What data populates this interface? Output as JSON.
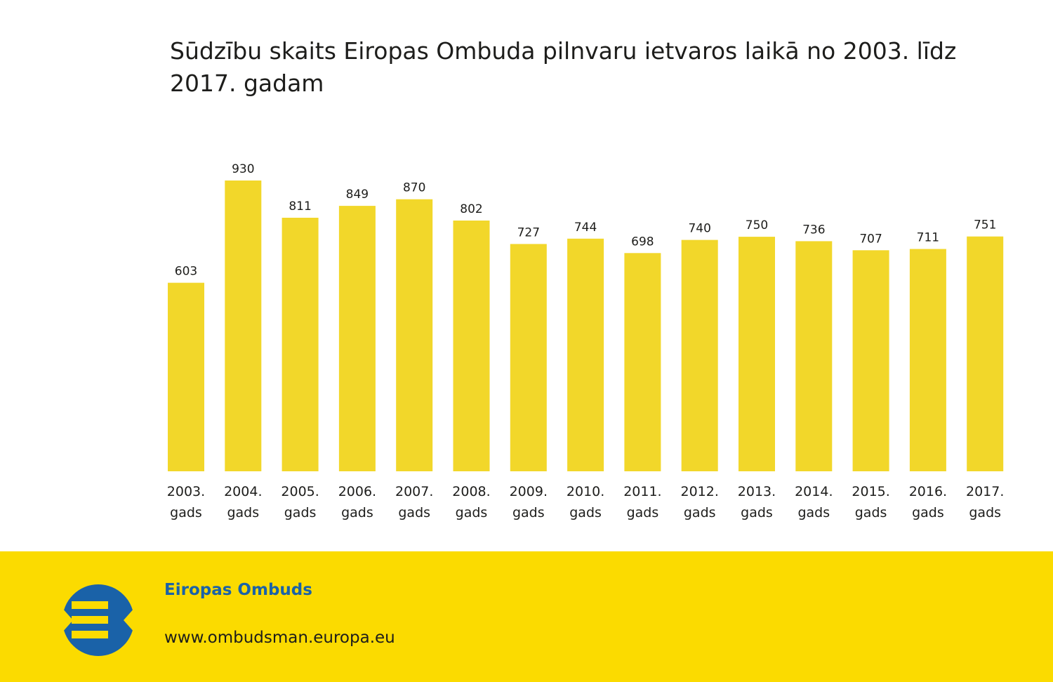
{
  "chart_data": {
    "type": "bar",
    "title": "Sūdzību skaits Eiropas Ombuda pilnvaru ietvaros laikā no 2003. līdz 2017. gadam",
    "categories": [
      [
        "2003.",
        "gads"
      ],
      [
        "2004.",
        "gads"
      ],
      [
        "2005.",
        "gads"
      ],
      [
        "2006.",
        "gads"
      ],
      [
        "2007.",
        "gads"
      ],
      [
        "2008.",
        "gads"
      ],
      [
        "2009.",
        "gads"
      ],
      [
        "2010.",
        "gads"
      ],
      [
        "2011.",
        "gads"
      ],
      [
        "2012.",
        "gads"
      ],
      [
        "2013.",
        "gads"
      ],
      [
        "2014.",
        "gads"
      ],
      [
        "2015.",
        "gads"
      ],
      [
        "2016.",
        "gads"
      ],
      [
        "2017.",
        "gads"
      ]
    ],
    "values": [
      603,
      930,
      811,
      849,
      870,
      802,
      727,
      744,
      698,
      740,
      750,
      736,
      707,
      711,
      751
    ],
    "xlabel": "",
    "ylabel": "",
    "ylim": [
      0,
      930
    ],
    "grid": false,
    "legend": "none",
    "bar_color": "#f2d72a"
  },
  "footer": {
    "org_name": "Eiropas Ombuds",
    "url": "www.ombudsman.europa.eu",
    "background_color": "#fbdb00",
    "logo_color": "#1a62a8"
  }
}
